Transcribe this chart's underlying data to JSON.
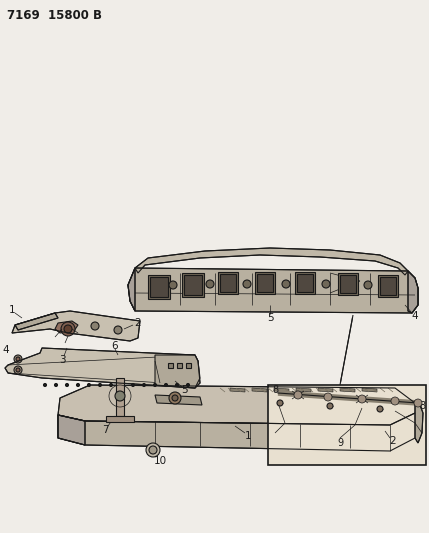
{
  "title": "7169  15800 B",
  "bg_color": "#f0ede8",
  "line_color": "#1a1a1a",
  "fig_width": 4.29,
  "fig_height": 5.33,
  "dpi": 100,
  "title_fontsize": 8.5,
  "label_fontsize": 7.5
}
